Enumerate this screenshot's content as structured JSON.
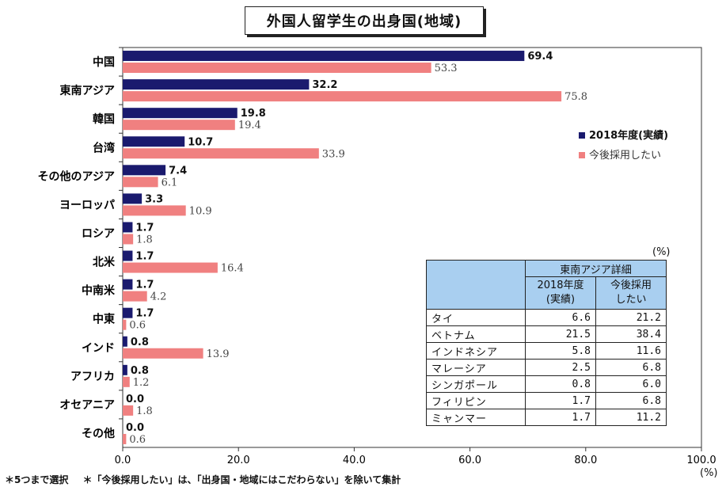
{
  "title": "外国人留学生の出身国(地域)",
  "chart_data": {
    "type": "bar",
    "orientation": "horizontal",
    "categories": [
      "中国",
      "東南アジア",
      "韓国",
      "台湾",
      "その他のアジア",
      "ヨーロッパ",
      "ロシア",
      "北米",
      "中南米",
      "中東",
      "インド",
      "アフリカ",
      "オセアニア",
      "その他"
    ],
    "series": [
      {
        "name": "2018年度(実績)",
        "color": "#1a1a6e",
        "values": [
          69.4,
          32.2,
          19.8,
          10.7,
          7.4,
          3.3,
          1.7,
          1.7,
          1.7,
          1.7,
          0.8,
          0.8,
          0.0,
          0.0
        ],
        "labels": [
          "69.4",
          "32.2",
          "19.8",
          "10.7",
          "7.4",
          "3.3",
          "1.7",
          "1.7",
          "1.7",
          "1.7",
          "0.8",
          "0.8",
          "0.0",
          "0.0"
        ]
      },
      {
        "name": "今後採用したい",
        "color": "#f08080",
        "values": [
          53.3,
          75.8,
          19.4,
          33.9,
          6.1,
          10.9,
          1.8,
          16.4,
          4.2,
          0.6,
          13.9,
          1.2,
          1.8,
          0.6
        ],
        "labels": [
          "53.3",
          "75.8",
          "19.4",
          "33.9",
          "6.1",
          "10.9",
          "1.8",
          "16.4",
          "4.2",
          "0.6",
          "13.9",
          "1.2",
          "1.8",
          "0.6"
        ]
      }
    ],
    "xlim": [
      0,
      100
    ],
    "xticks": [
      "0.0",
      "20.0",
      "40.0",
      "60.0",
      "80.0",
      "100.0"
    ],
    "x_unit": "(%)",
    "legend_position": "right"
  },
  "detail_table": {
    "unit": "(%)",
    "title": "東南アジア詳細",
    "col1": "2018年度\n(実績)",
    "col2": "今後採用\nしたい",
    "rows": [
      {
        "name": "タイ",
        "a": "6.6",
        "b": "21.2"
      },
      {
        "name": "ベトナム",
        "a": "21.5",
        "b": "38.4"
      },
      {
        "name": "インドネシア",
        "a": "5.8",
        "b": "11.6"
      },
      {
        "name": "マレーシア",
        "a": "2.5",
        "b": "6.8"
      },
      {
        "name": "シンガポール",
        "a": "0.8",
        "b": "6.0"
      },
      {
        "name": "フィリピン",
        "a": "1.7",
        "b": "6.8"
      },
      {
        "name": "ミャンマー",
        "a": "1.7",
        "b": "11.2"
      }
    ]
  },
  "footnotes": [
    "＊5つまで選択",
    "＊「今後採用したい」は、「出身国・地域にはこだわらない」を除いて集計"
  ]
}
